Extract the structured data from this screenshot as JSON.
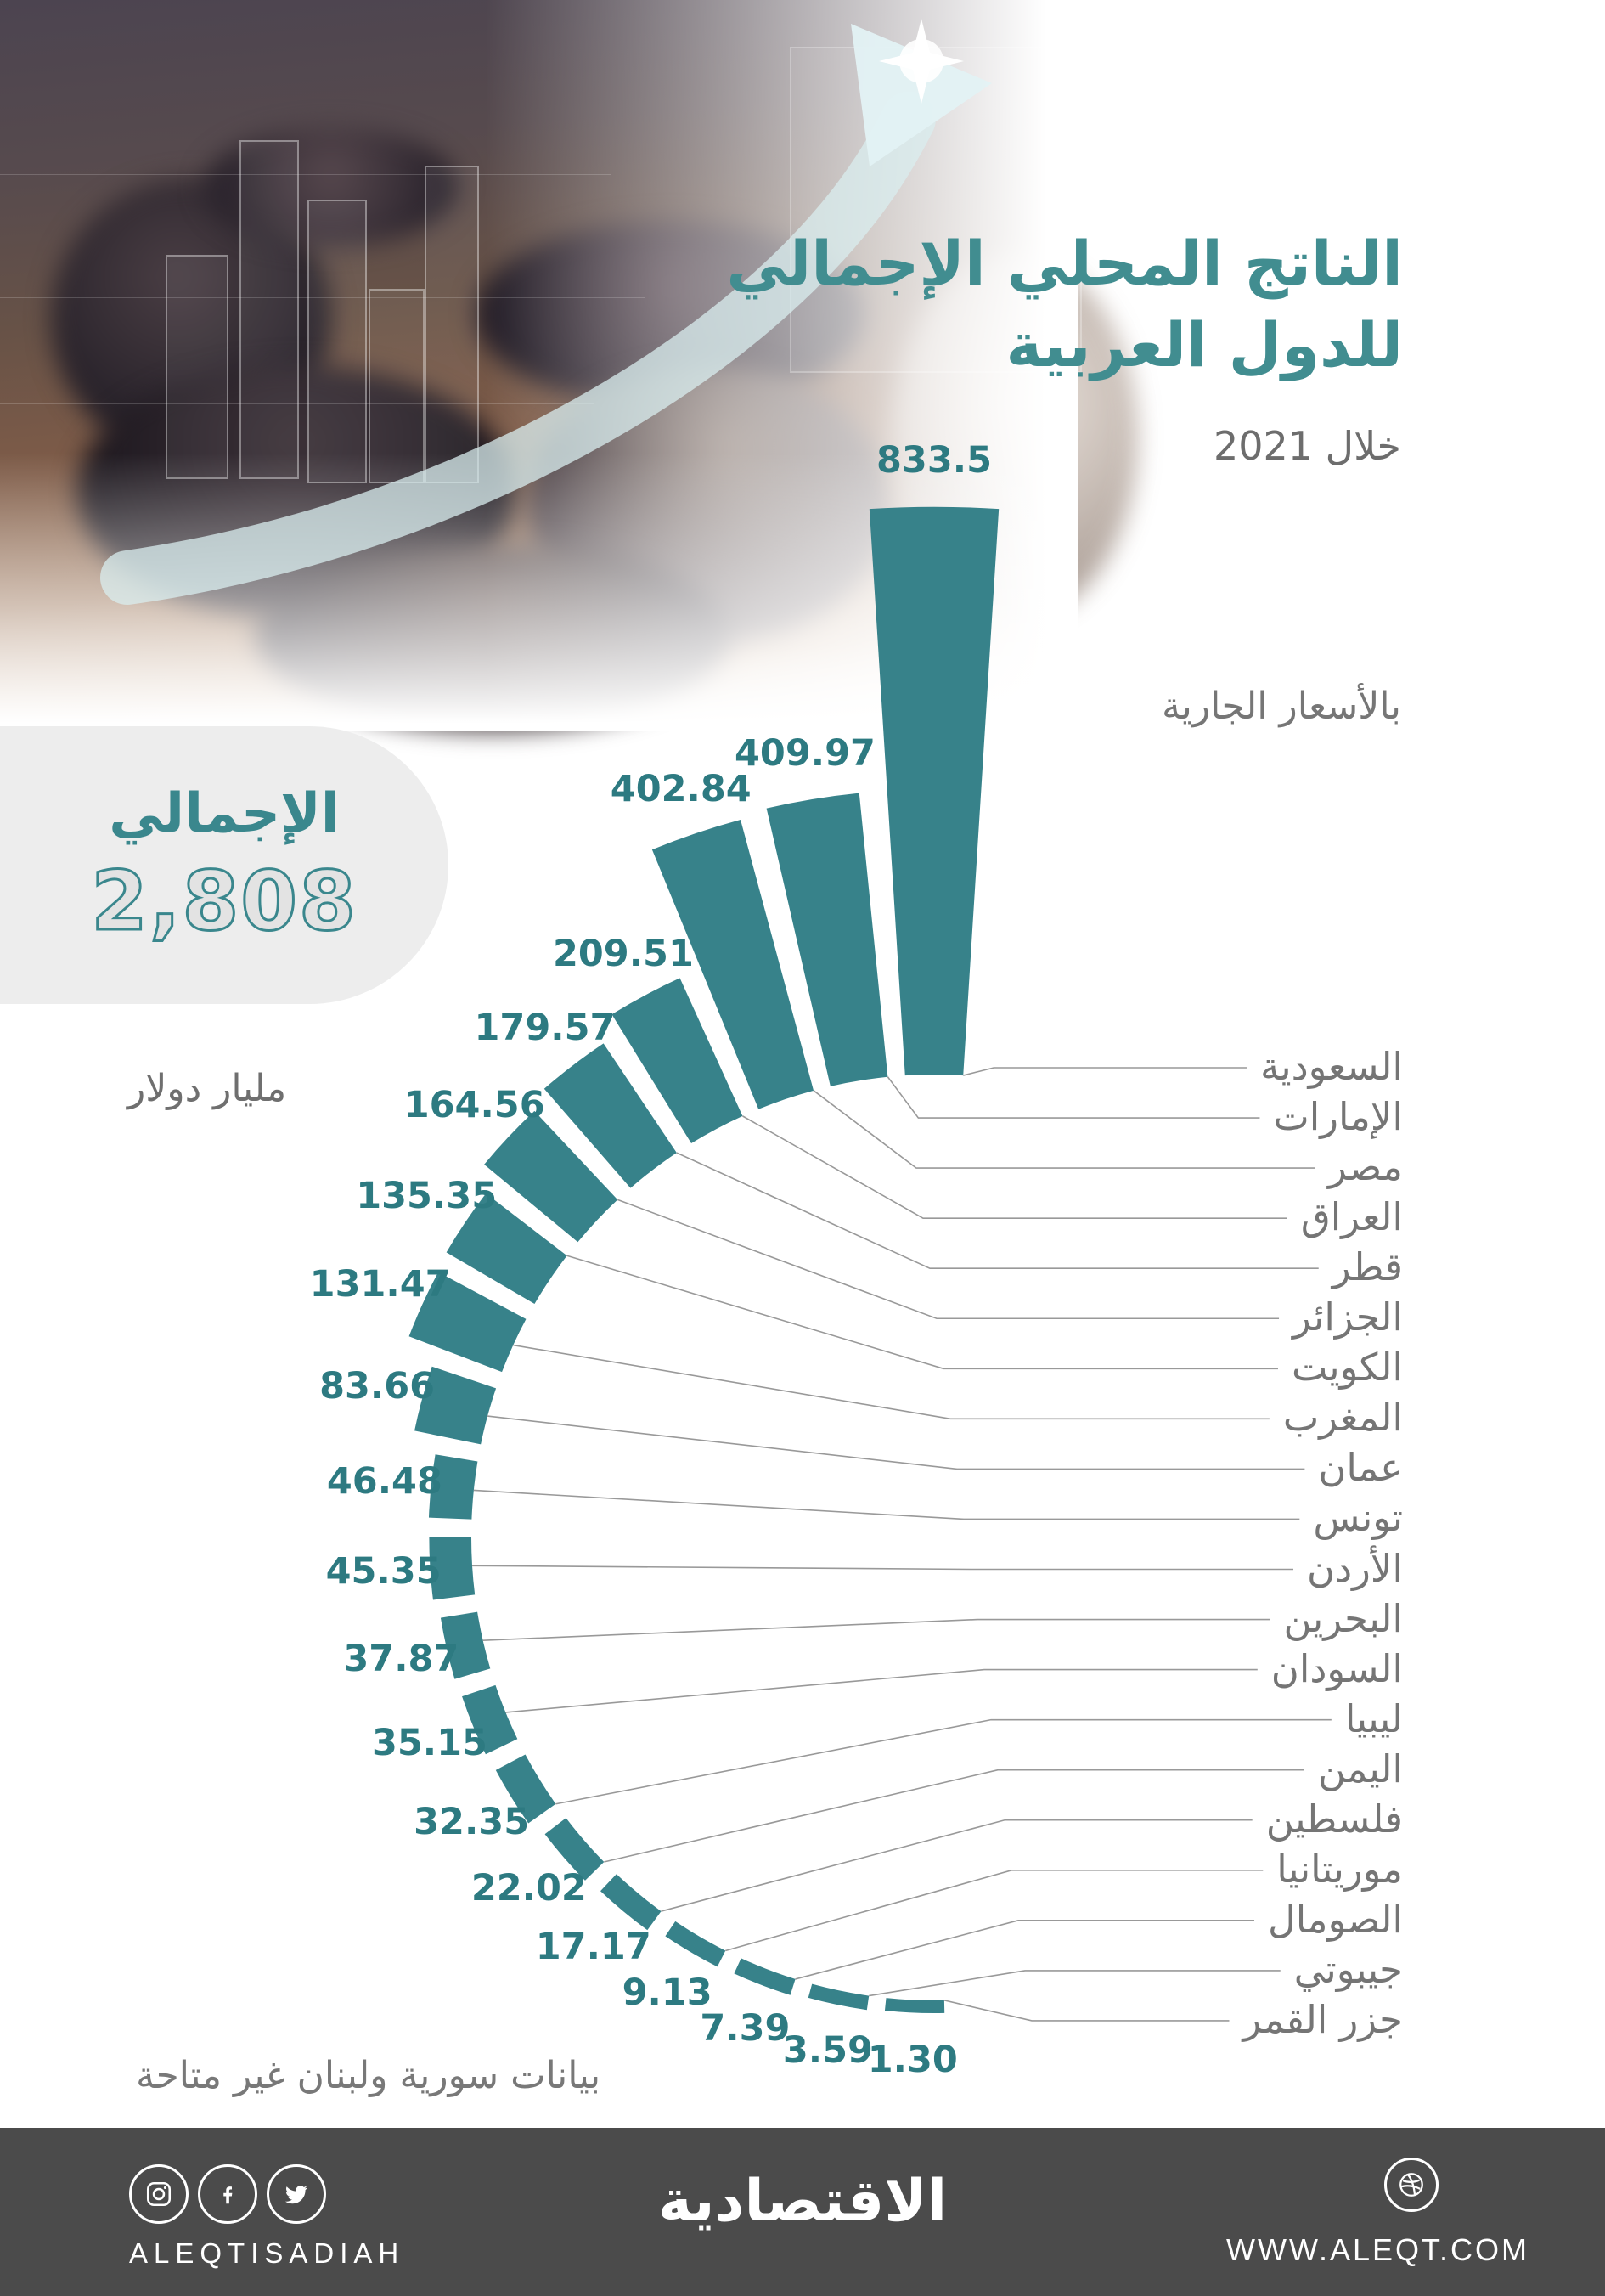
{
  "title": {
    "line1": "الناتج المحلي الإجمالي",
    "line2": "للدول العربية"
  },
  "period": "خلال 2021",
  "price_basis": "بالأسعار الجارية",
  "total": {
    "label": "الإجمالي",
    "value": "2,808",
    "unit": "مليار دولار"
  },
  "footnote": "بيانات سورية ولبنان غير متاحة",
  "footer": {
    "handle": "ALEQTISADIAH",
    "brand": "الاقتصادية",
    "website": "WWW.ALEQT.COM"
  },
  "colors": {
    "bar_teal": "#37828a",
    "value_label": "#2d7a81",
    "title_teal": "#418d90",
    "country_label": "#757575",
    "connector": "#999999",
    "footer_bg": "#4b4b4b",
    "pill_bg": "#ededed",
    "arrow": "#d9edef"
  },
  "chart_data": {
    "type": "bar",
    "variant": "radial-fan",
    "title": "الناتج المحلي الإجمالي للدول العربية خلال 2021",
    "ylabel": "مليار دولار",
    "total": 2808,
    "legend_position": "none",
    "grid": false,
    "categories": [
      "السعودية",
      "الإمارات",
      "مصر",
      "العراق",
      "قطر",
      "الجزائر",
      "الكويت",
      "المغرب",
      "عمان",
      "تونس",
      "الأردن",
      "البحرين",
      "السودان",
      "ليبيا",
      "اليمن",
      "فلسطين",
      "موريتانيا",
      "الصومال",
      "جيبوتي",
      "جزر القمر"
    ],
    "values": [
      833.5,
      409.97,
      402.84,
      209.51,
      179.57,
      164.56,
      135.35,
      131.47,
      83.66,
      46.48,
      45.35,
      37.87,
      35.15,
      32.35,
      22.02,
      17.17,
      9.13,
      7.39,
      3.59,
      1.3
    ],
    "value_labels": [
      "833.5",
      "409.97",
      "402.84",
      "209.51",
      "179.57",
      "164.56",
      "135.35",
      "131.47",
      "83.66",
      "46.48",
      "45.35",
      "37.87",
      "35.15",
      "32.35",
      "22.02",
      "17.17",
      "9.13",
      "7.39",
      "3.59",
      "1.30"
    ]
  }
}
